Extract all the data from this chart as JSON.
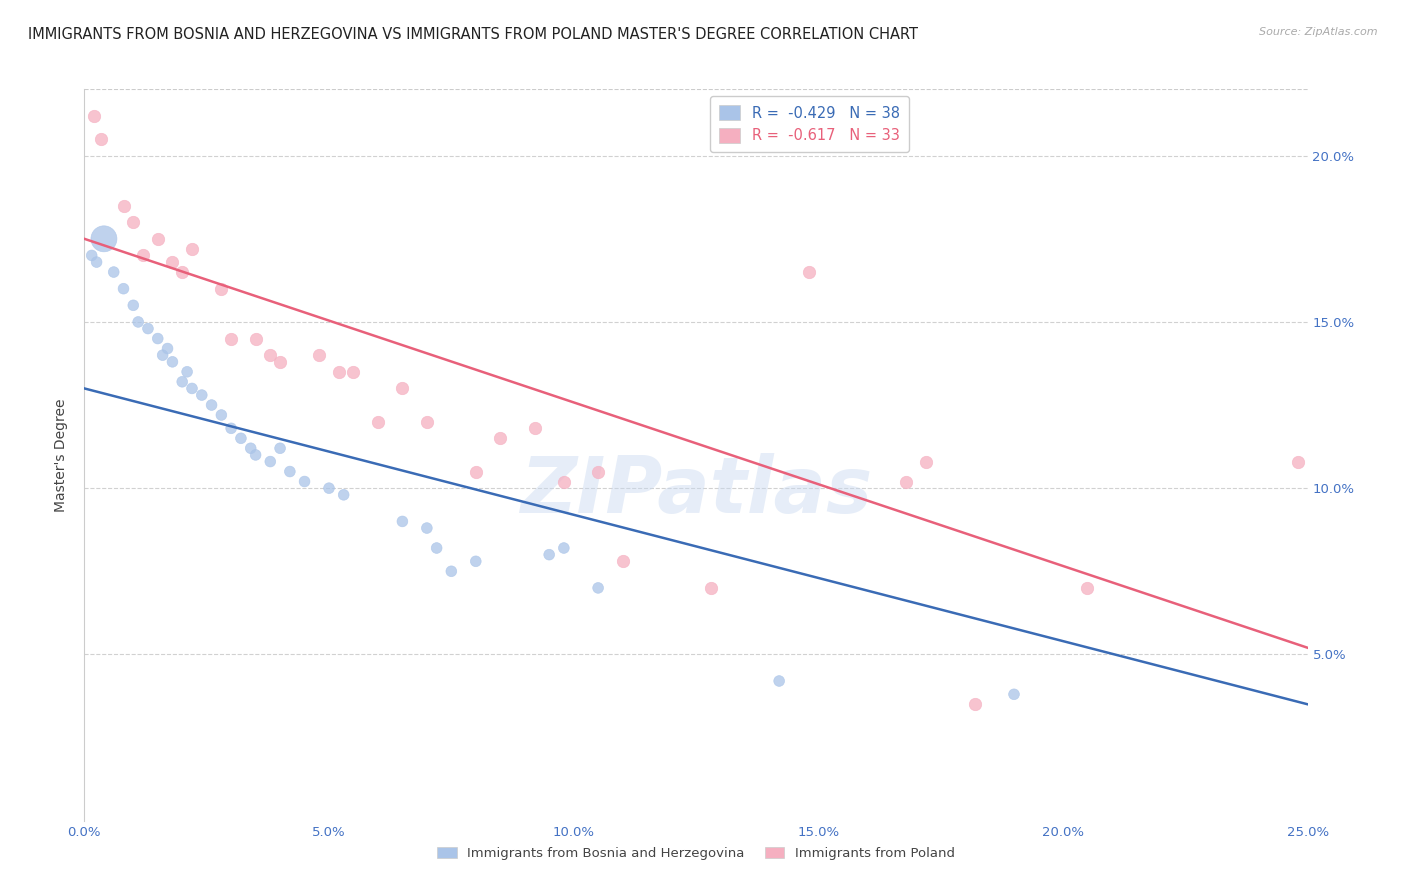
{
  "title": "IMMIGRANTS FROM BOSNIA AND HERZEGOVINA VS IMMIGRANTS FROM POLAND MASTER'S DEGREE CORRELATION CHART",
  "source": "Source: ZipAtlas.com",
  "ylabel": "Master's Degree",
  "xlabel_ticks": [
    "0.0%",
    "5.0%",
    "10.0%",
    "15.0%",
    "20.0%",
    "25.0%"
  ],
  "xlabel_vals": [
    0.0,
    5.0,
    10.0,
    15.0,
    20.0,
    25.0
  ],
  "ylabel_ticks": [
    "5.0%",
    "10.0%",
    "15.0%",
    "20.0%"
  ],
  "ylabel_vals": [
    5.0,
    10.0,
    15.0,
    20.0
  ],
  "xlim": [
    0.0,
    25.0
  ],
  "ylim": [
    0.0,
    22.0
  ],
  "bosnia_R": -0.429,
  "bosnia_N": 38,
  "poland_R": -0.617,
  "poland_N": 33,
  "bosnia_color": "#aac4e8",
  "poland_color": "#f5afc0",
  "bosnia_line_color": "#3a6bb5",
  "poland_line_color": "#e8607a",
  "bosnia_scatter": [
    [
      0.15,
      17.0
    ],
    [
      0.25,
      16.8
    ],
    [
      0.4,
      17.5
    ],
    [
      0.6,
      16.5
    ],
    [
      0.8,
      16.0
    ],
    [
      1.0,
      15.5
    ],
    [
      1.1,
      15.0
    ],
    [
      1.3,
      14.8
    ],
    [
      1.5,
      14.5
    ],
    [
      1.6,
      14.0
    ],
    [
      1.7,
      14.2
    ],
    [
      1.8,
      13.8
    ],
    [
      2.0,
      13.2
    ],
    [
      2.1,
      13.5
    ],
    [
      2.2,
      13.0
    ],
    [
      2.4,
      12.8
    ],
    [
      2.6,
      12.5
    ],
    [
      2.8,
      12.2
    ],
    [
      3.0,
      11.8
    ],
    [
      3.2,
      11.5
    ],
    [
      3.4,
      11.2
    ],
    [
      3.5,
      11.0
    ],
    [
      3.8,
      10.8
    ],
    [
      4.0,
      11.2
    ],
    [
      4.2,
      10.5
    ],
    [
      4.5,
      10.2
    ],
    [
      5.0,
      10.0
    ],
    [
      5.3,
      9.8
    ],
    [
      6.5,
      9.0
    ],
    [
      7.0,
      8.8
    ],
    [
      7.2,
      8.2
    ],
    [
      7.5,
      7.5
    ],
    [
      8.0,
      7.8
    ],
    [
      9.5,
      8.0
    ],
    [
      9.8,
      8.2
    ],
    [
      10.5,
      7.0
    ],
    [
      14.2,
      4.2
    ],
    [
      19.0,
      3.8
    ]
  ],
  "bosnia_scatter_sizes": [
    60,
    60,
    350,
    60,
    60,
    60,
    60,
    60,
    60,
    60,
    60,
    60,
    60,
    60,
    60,
    60,
    60,
    60,
    60,
    60,
    60,
    60,
    60,
    60,
    60,
    60,
    60,
    60,
    60,
    60,
    60,
    60,
    60,
    60,
    60,
    60,
    60,
    60
  ],
  "poland_scatter": [
    [
      0.2,
      21.2
    ],
    [
      0.35,
      20.5
    ],
    [
      0.8,
      18.5
    ],
    [
      1.0,
      18.0
    ],
    [
      1.2,
      17.0
    ],
    [
      1.5,
      17.5
    ],
    [
      1.8,
      16.8
    ],
    [
      2.0,
      16.5
    ],
    [
      2.2,
      17.2
    ],
    [
      2.8,
      16.0
    ],
    [
      3.0,
      14.5
    ],
    [
      3.5,
      14.5
    ],
    [
      3.8,
      14.0
    ],
    [
      4.0,
      13.8
    ],
    [
      4.8,
      14.0
    ],
    [
      5.2,
      13.5
    ],
    [
      5.5,
      13.5
    ],
    [
      6.5,
      13.0
    ],
    [
      7.0,
      12.0
    ],
    [
      8.0,
      10.5
    ],
    [
      8.5,
      11.5
    ],
    [
      9.2,
      11.8
    ],
    [
      9.8,
      10.2
    ],
    [
      10.5,
      10.5
    ],
    [
      11.0,
      7.8
    ],
    [
      12.8,
      7.0
    ],
    [
      14.8,
      16.5
    ],
    [
      16.8,
      10.2
    ],
    [
      17.2,
      10.8
    ],
    [
      18.2,
      3.5
    ],
    [
      20.5,
      7.0
    ],
    [
      24.8,
      10.8
    ],
    [
      6.0,
      12.0
    ]
  ],
  "bosnia_line": [
    [
      0.0,
      13.0
    ],
    [
      25.0,
      3.5
    ]
  ],
  "poland_line": [
    [
      0.0,
      17.5
    ],
    [
      25.0,
      5.2
    ]
  ],
  "watermark": "ZIPatlas",
  "legend_labels": [
    "Immigrants from Bosnia and Herzegovina",
    "Immigrants from Poland"
  ],
  "background_color": "#ffffff",
  "grid_color": "#cccccc",
  "title_fontsize": 10.5,
  "axis_fontsize": 10,
  "tick_fontsize": 9.5
}
